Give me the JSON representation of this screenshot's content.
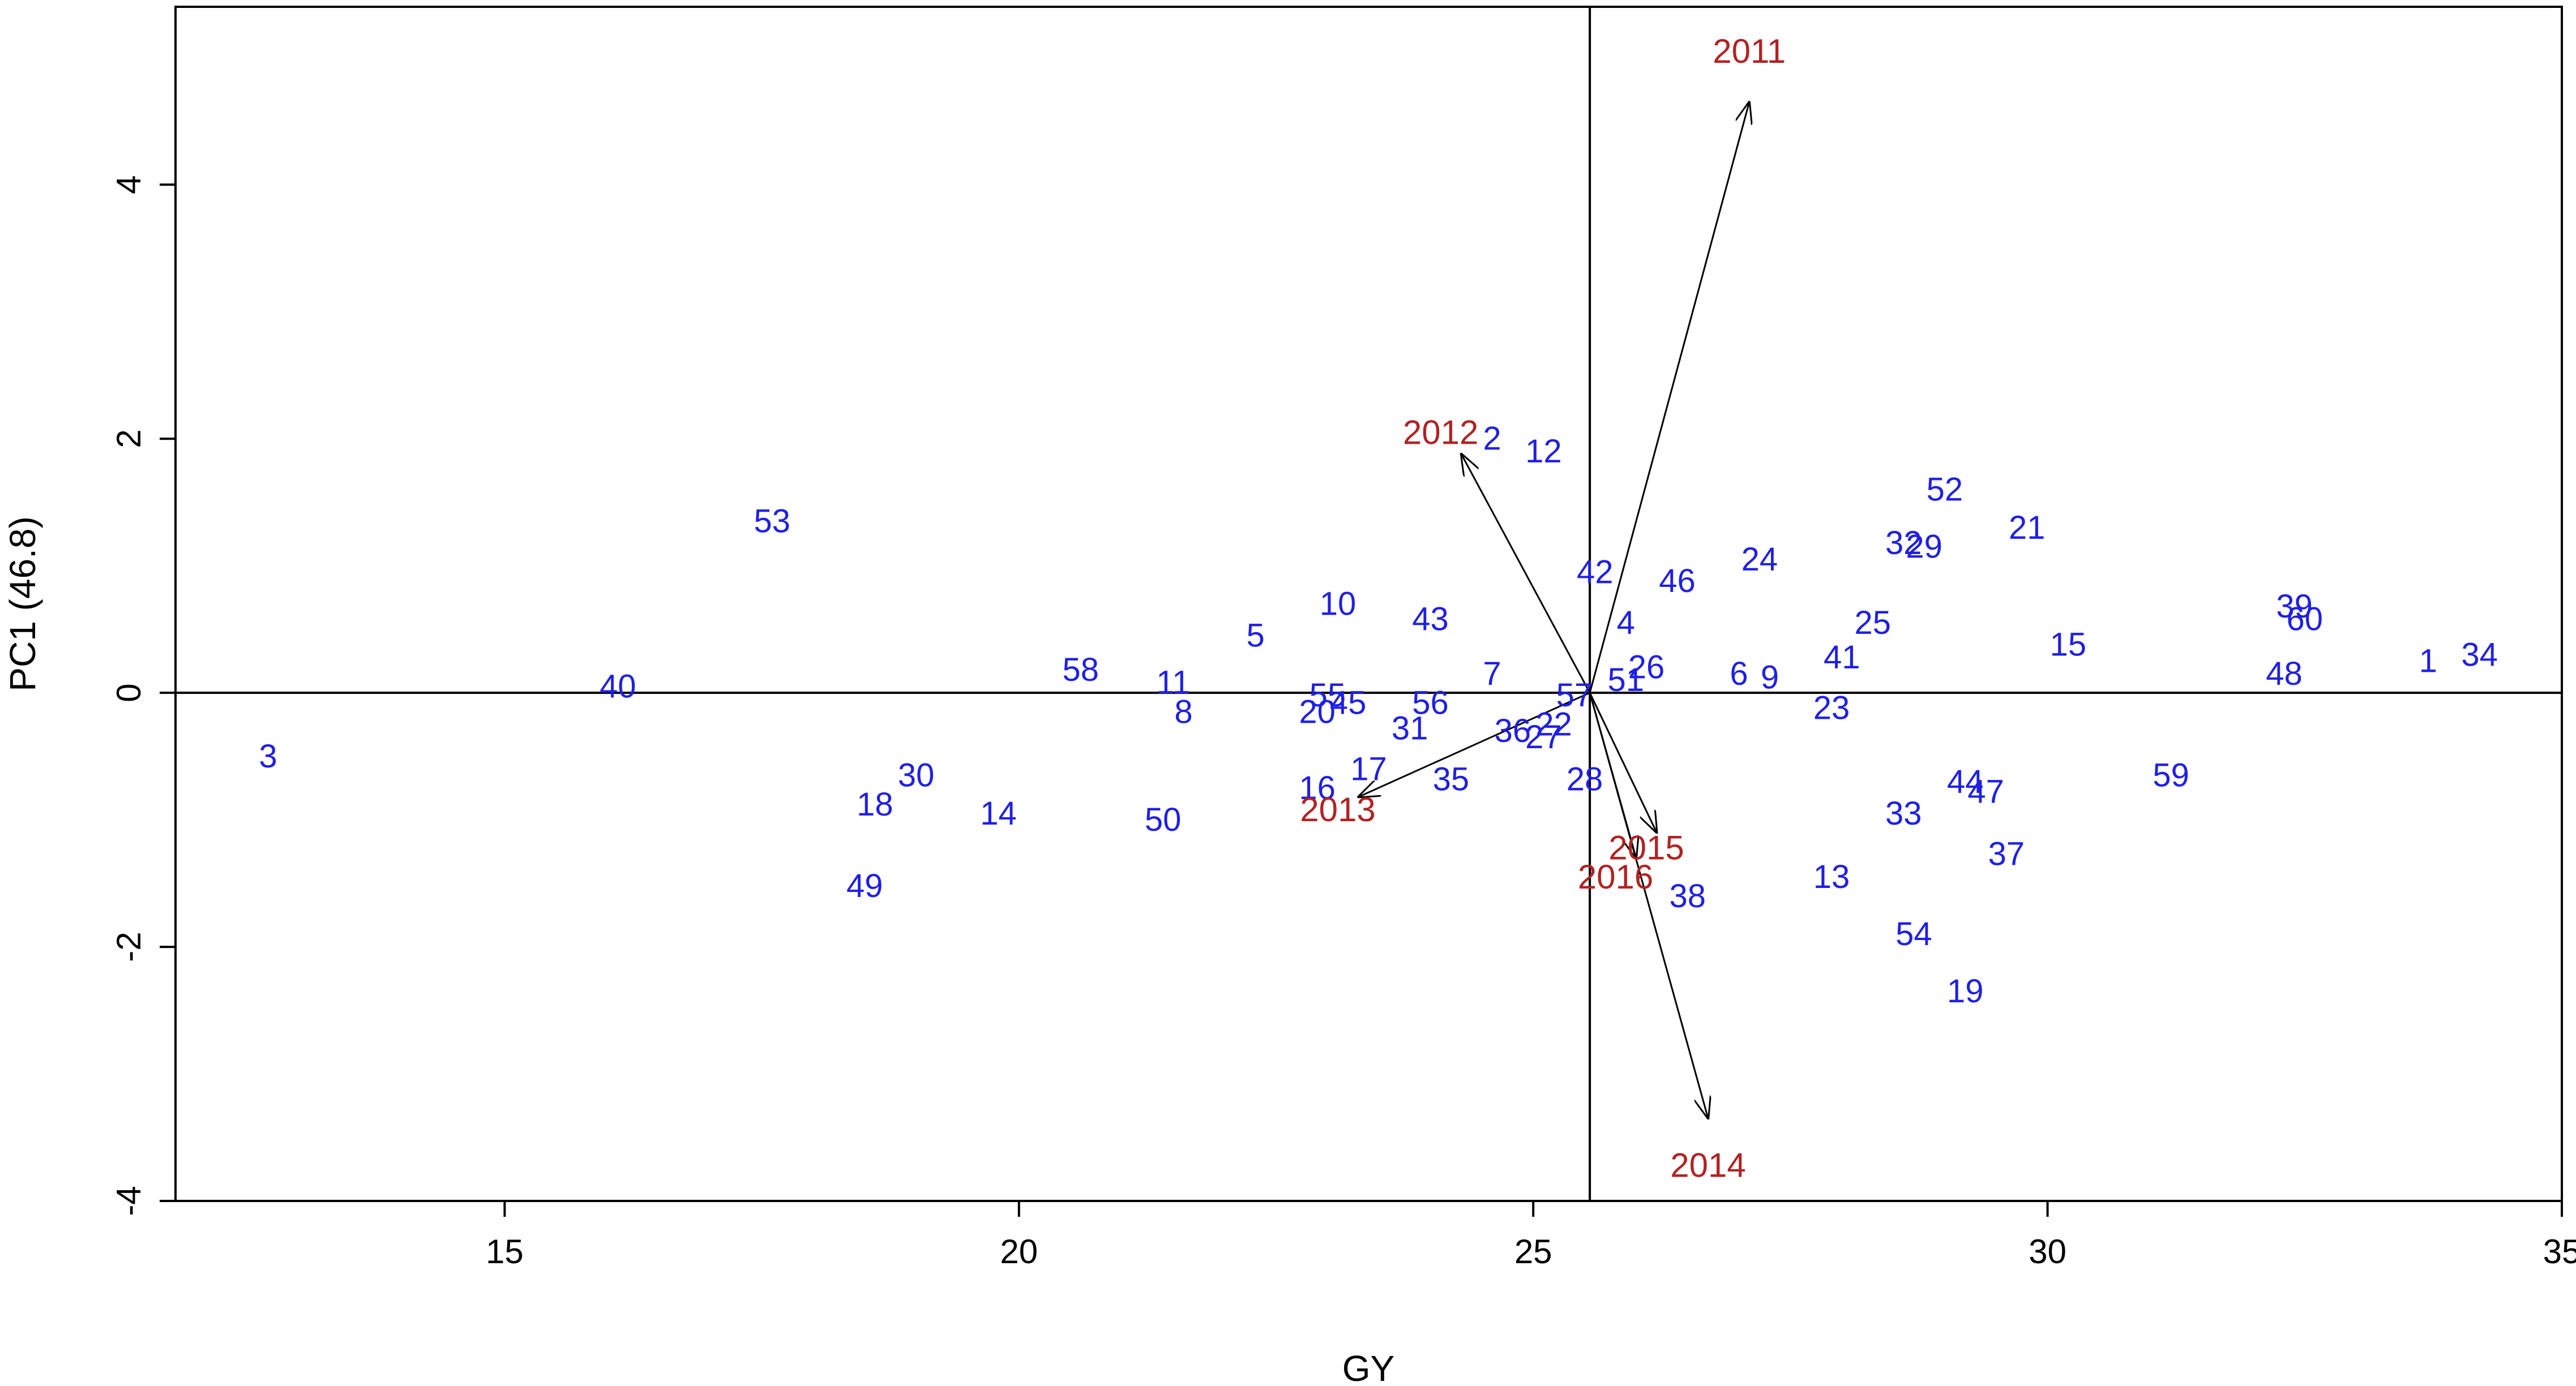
{
  "chart_data": {
    "type": "scatter",
    "title": "",
    "xlabel": "GY",
    "ylabel": "PC1 (46.8)",
    "xlim": [
      11.8,
      35.0
    ],
    "ylim": [
      -4.0,
      5.4
    ],
    "x_ticks": [
      15,
      20,
      25,
      30,
      35
    ],
    "y_ticks": [
      -4,
      -2,
      0,
      2,
      4
    ],
    "grid": false,
    "reference_lines": {
      "x": 25.55,
      "y": 0
    },
    "colors": {
      "genotype": "#1f1fe6",
      "environment": "#b22222",
      "axes": "#000000"
    },
    "series": [
      {
        "name": "",
        "points": [
          {
            "label": "1",
            "x": 33.7,
            "y": 0.25
          },
          {
            "label": "2",
            "x": 24.6,
            "y": 2.0
          },
          {
            "label": "3",
            "x": 12.7,
            "y": -0.5
          },
          {
            "label": "4",
            "x": 25.9,
            "y": 0.55
          },
          {
            "label": "5",
            "x": 22.3,
            "y": 0.45
          },
          {
            "label": "6",
            "x": 27.0,
            "y": 0.15
          },
          {
            "label": "7",
            "x": 24.6,
            "y": 0.15
          },
          {
            "label": "8",
            "x": 21.6,
            "y": -0.15
          },
          {
            "label": "9",
            "x": 27.3,
            "y": 0.12
          },
          {
            "label": "10",
            "x": 23.1,
            "y": 0.7
          },
          {
            "label": "11",
            "x": 21.5,
            "y": 0.08
          },
          {
            "label": "12",
            "x": 25.1,
            "y": 1.9
          },
          {
            "label": "13",
            "x": 27.9,
            "y": -1.45
          },
          {
            "label": "14",
            "x": 19.8,
            "y": -0.95
          },
          {
            "label": "15",
            "x": 30.2,
            "y": 0.38
          },
          {
            "label": "16",
            "x": 22.9,
            "y": -0.75
          },
          {
            "label": "17",
            "x": 23.4,
            "y": -0.6
          },
          {
            "label": "18",
            "x": 18.6,
            "y": -0.88
          },
          {
            "label": "19",
            "x": 29.2,
            "y": -2.35
          },
          {
            "label": "20",
            "x": 22.9,
            "y": -0.15
          },
          {
            "label": "21",
            "x": 29.8,
            "y": 1.3
          },
          {
            "label": "22",
            "x": 25.2,
            "y": -0.25
          },
          {
            "label": "23",
            "x": 27.9,
            "y": -0.12
          },
          {
            "label": "24",
            "x": 27.2,
            "y": 1.05
          },
          {
            "label": "25",
            "x": 28.3,
            "y": 0.55
          },
          {
            "label": "26",
            "x": 26.1,
            "y": 0.2
          },
          {
            "label": "27",
            "x": 25.1,
            "y": -0.35
          },
          {
            "label": "28",
            "x": 25.5,
            "y": -0.68
          },
          {
            "label": "29",
            "x": 28.8,
            "y": 1.15
          },
          {
            "label": "30",
            "x": 19.0,
            "y": -0.65
          },
          {
            "label": "31",
            "x": 23.8,
            "y": -0.28
          },
          {
            "label": "32",
            "x": 28.6,
            "y": 1.18
          },
          {
            "label": "33",
            "x": 28.6,
            "y": -0.95
          },
          {
            "label": "34",
            "x": 34.2,
            "y": 0.3
          },
          {
            "label": "35",
            "x": 24.2,
            "y": -0.68
          },
          {
            "label": "36",
            "x": 24.8,
            "y": -0.3
          },
          {
            "label": "37",
            "x": 29.6,
            "y": -1.27
          },
          {
            "label": "38",
            "x": 26.5,
            "y": -1.6
          },
          {
            "label": "39",
            "x": 32.4,
            "y": 0.68
          },
          {
            "label": "40",
            "x": 16.1,
            "y": 0.05
          },
          {
            "label": "41",
            "x": 28.0,
            "y": 0.28
          },
          {
            "label": "42",
            "x": 25.6,
            "y": 0.95
          },
          {
            "label": "43",
            "x": 24.0,
            "y": 0.58
          },
          {
            "label": "44",
            "x": 29.2,
            "y": -0.7
          },
          {
            "label": "45",
            "x": 23.2,
            "y": -0.08
          },
          {
            "label": "46",
            "x": 26.4,
            "y": 0.88
          },
          {
            "label": "47",
            "x": 29.4,
            "y": -0.78
          },
          {
            "label": "48",
            "x": 32.3,
            "y": 0.15
          },
          {
            "label": "49",
            "x": 18.5,
            "y": -1.52
          },
          {
            "label": "50",
            "x": 21.4,
            "y": -1.0
          },
          {
            "label": "51",
            "x": 25.9,
            "y": 0.1
          },
          {
            "label": "52",
            "x": 29.0,
            "y": 1.6
          },
          {
            "label": "53",
            "x": 17.6,
            "y": 1.35
          },
          {
            "label": "54",
            "x": 28.7,
            "y": -1.9
          },
          {
            "label": "55",
            "x": 23.0,
            "y": -0.02
          },
          {
            "label": "56",
            "x": 24.0,
            "y": -0.08
          },
          {
            "label": "57",
            "x": 25.4,
            "y": -0.02
          },
          {
            "label": "58",
            "x": 20.6,
            "y": 0.18
          },
          {
            "label": "59",
            "x": 31.2,
            "y": -0.65
          },
          {
            "label": "60",
            "x": 32.5,
            "y": 0.58
          }
        ]
      }
    ],
    "environments": [
      {
        "label": "2011",
        "x": 27.1,
        "y": 4.65,
        "label_x": 27.1,
        "label_y": 5.05
      },
      {
        "label": "2012",
        "x": 24.3,
        "y": 1.88,
        "label_x": 24.1,
        "label_y": 2.05
      },
      {
        "label": "2013",
        "x": 23.3,
        "y": -0.82,
        "label_x": 23.1,
        "label_y": -0.92
      },
      {
        "label": "2014",
        "x": 26.7,
        "y": -3.35,
        "label_x": 26.7,
        "label_y": -3.72
      },
      {
        "label": "2015",
        "x": 26.2,
        "y": -1.1,
        "label_x": 26.1,
        "label_y": -1.22
      },
      {
        "label": "2016",
        "x": 26.0,
        "y": -1.3,
        "label_x": 25.8,
        "label_y": -1.45
      }
    ],
    "arrow_origin": {
      "x": 25.55,
      "y": 0
    }
  }
}
